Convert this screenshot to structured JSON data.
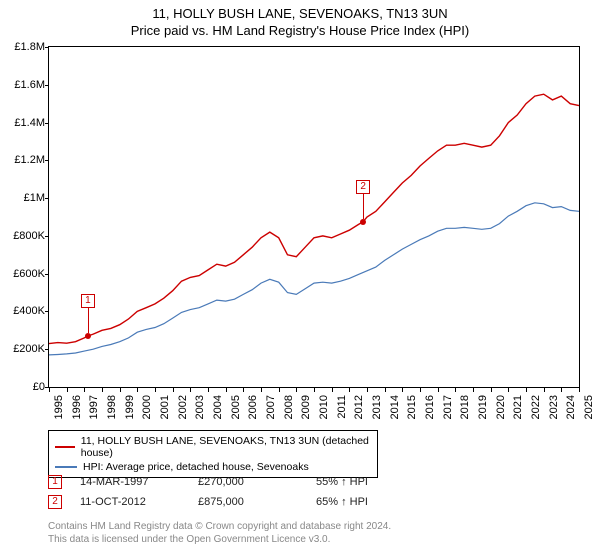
{
  "title_line1": "11, HOLLY BUSH LANE, SEVENOAKS, TN13 3UN",
  "title_line2": "Price paid vs. HM Land Registry's House Price Index (HPI)",
  "chart": {
    "type": "line",
    "background_color": "#ffffff",
    "border_color": "#000000",
    "ylim": [
      0,
      1800000
    ],
    "yticks": [
      0,
      200000,
      400000,
      600000,
      800000,
      1000000,
      1200000,
      1400000,
      1600000,
      1800000
    ],
    "ytick_labels": [
      "£0",
      "£200K",
      "£400K",
      "£600K",
      "£800K",
      "£1M",
      "£1.2M",
      "£1.4M",
      "£1.6M",
      "£1.8M"
    ],
    "ytick_fontsize": 11,
    "xlim": [
      1995,
      2025
    ],
    "xticks": [
      1995,
      1996,
      1997,
      1998,
      1999,
      2000,
      2001,
      2002,
      2003,
      2004,
      2005,
      2006,
      2007,
      2008,
      2009,
      2010,
      2011,
      2012,
      2013,
      2014,
      2015,
      2016,
      2017,
      2018,
      2019,
      2020,
      2021,
      2022,
      2023,
      2024,
      2025
    ],
    "xtick_fontsize": 11,
    "series": [
      {
        "name": "property",
        "color": "#cc0000",
        "line_width": 1.4,
        "label": "11, HOLLY BUSH LANE, SEVENOAKS, TN13 3UN (detached house)",
        "points": [
          [
            1995.0,
            230000
          ],
          [
            1995.5,
            235000
          ],
          [
            1996.0,
            232000
          ],
          [
            1996.5,
            240000
          ],
          [
            1997.0,
            260000
          ],
          [
            1997.2,
            270000
          ],
          [
            1997.5,
            280000
          ],
          [
            1998.0,
            300000
          ],
          [
            1998.5,
            310000
          ],
          [
            1999.0,
            330000
          ],
          [
            1999.5,
            360000
          ],
          [
            2000.0,
            400000
          ],
          [
            2000.5,
            420000
          ],
          [
            2001.0,
            440000
          ],
          [
            2001.5,
            470000
          ],
          [
            2002.0,
            510000
          ],
          [
            2002.5,
            560000
          ],
          [
            2003.0,
            580000
          ],
          [
            2003.5,
            590000
          ],
          [
            2004.0,
            620000
          ],
          [
            2004.5,
            650000
          ],
          [
            2005.0,
            640000
          ],
          [
            2005.5,
            660000
          ],
          [
            2006.0,
            700000
          ],
          [
            2006.5,
            740000
          ],
          [
            2007.0,
            790000
          ],
          [
            2007.5,
            820000
          ],
          [
            2008.0,
            790000
          ],
          [
            2008.5,
            700000
          ],
          [
            2009.0,
            690000
          ],
          [
            2009.5,
            740000
          ],
          [
            2010.0,
            790000
          ],
          [
            2010.5,
            800000
          ],
          [
            2011.0,
            790000
          ],
          [
            2011.5,
            810000
          ],
          [
            2012.0,
            830000
          ],
          [
            2012.5,
            860000
          ],
          [
            2012.78,
            875000
          ],
          [
            2013.0,
            900000
          ],
          [
            2013.5,
            930000
          ],
          [
            2014.0,
            980000
          ],
          [
            2014.5,
            1030000
          ],
          [
            2015.0,
            1080000
          ],
          [
            2015.5,
            1120000
          ],
          [
            2016.0,
            1170000
          ],
          [
            2016.5,
            1210000
          ],
          [
            2017.0,
            1250000
          ],
          [
            2017.5,
            1280000
          ],
          [
            2018.0,
            1280000
          ],
          [
            2018.5,
            1290000
          ],
          [
            2019.0,
            1280000
          ],
          [
            2019.5,
            1270000
          ],
          [
            2020.0,
            1280000
          ],
          [
            2020.5,
            1330000
          ],
          [
            2021.0,
            1400000
          ],
          [
            2021.5,
            1440000
          ],
          [
            2022.0,
            1500000
          ],
          [
            2022.5,
            1540000
          ],
          [
            2023.0,
            1550000
          ],
          [
            2023.5,
            1520000
          ],
          [
            2024.0,
            1540000
          ],
          [
            2024.5,
            1500000
          ],
          [
            2025.0,
            1490000
          ]
        ]
      },
      {
        "name": "hpi",
        "color": "#4a7ab8",
        "line_width": 1.2,
        "label": "HPI: Average price, detached house, Sevenoaks",
        "points": [
          [
            1995.0,
            170000
          ],
          [
            1995.5,
            172000
          ],
          [
            1996.0,
            175000
          ],
          [
            1996.5,
            180000
          ],
          [
            1997.0,
            190000
          ],
          [
            1997.5,
            200000
          ],
          [
            1998.0,
            215000
          ],
          [
            1998.5,
            225000
          ],
          [
            1999.0,
            240000
          ],
          [
            1999.5,
            260000
          ],
          [
            2000.0,
            290000
          ],
          [
            2000.5,
            305000
          ],
          [
            2001.0,
            315000
          ],
          [
            2001.5,
            335000
          ],
          [
            2002.0,
            365000
          ],
          [
            2002.5,
            395000
          ],
          [
            2003.0,
            410000
          ],
          [
            2003.5,
            420000
          ],
          [
            2004.0,
            440000
          ],
          [
            2004.5,
            460000
          ],
          [
            2005.0,
            455000
          ],
          [
            2005.5,
            465000
          ],
          [
            2006.0,
            490000
          ],
          [
            2006.5,
            515000
          ],
          [
            2007.0,
            550000
          ],
          [
            2007.5,
            570000
          ],
          [
            2008.0,
            555000
          ],
          [
            2008.5,
            500000
          ],
          [
            2009.0,
            490000
          ],
          [
            2009.5,
            520000
          ],
          [
            2010.0,
            550000
          ],
          [
            2010.5,
            555000
          ],
          [
            2011.0,
            550000
          ],
          [
            2011.5,
            560000
          ],
          [
            2012.0,
            575000
          ],
          [
            2012.5,
            595000
          ],
          [
            2013.0,
            615000
          ],
          [
            2013.5,
            635000
          ],
          [
            2014.0,
            670000
          ],
          [
            2014.5,
            700000
          ],
          [
            2015.0,
            730000
          ],
          [
            2015.5,
            755000
          ],
          [
            2016.0,
            780000
          ],
          [
            2016.5,
            800000
          ],
          [
            2017.0,
            825000
          ],
          [
            2017.5,
            840000
          ],
          [
            2018.0,
            840000
          ],
          [
            2018.5,
            845000
          ],
          [
            2019.0,
            840000
          ],
          [
            2019.5,
            835000
          ],
          [
            2020.0,
            840000
          ],
          [
            2020.5,
            865000
          ],
          [
            2021.0,
            905000
          ],
          [
            2021.5,
            930000
          ],
          [
            2022.0,
            960000
          ],
          [
            2022.5,
            975000
          ],
          [
            2023.0,
            970000
          ],
          [
            2023.5,
            950000
          ],
          [
            2024.0,
            955000
          ],
          [
            2024.5,
            935000
          ],
          [
            2025.0,
            930000
          ]
        ]
      }
    ],
    "markers": [
      {
        "id": "1",
        "x": 1997.2,
        "y": 270000
      },
      {
        "id": "2",
        "x": 2012.78,
        "y": 875000
      }
    ]
  },
  "legend": {
    "border_color": "#000000",
    "fontsize": 10.5
  },
  "events": [
    {
      "id": "1",
      "date": "14-MAR-1997",
      "price": "£270,000",
      "pct": "55% ↑ HPI"
    },
    {
      "id": "2",
      "date": "11-OCT-2012",
      "price": "£875,000",
      "pct": "65% ↑ HPI"
    }
  ],
  "footer_line1": "Contains HM Land Registry data © Crown copyright and database right 2024.",
  "footer_line2": "This data is licensed under the Open Government Licence v3.0.",
  "footer_color": "#888888"
}
